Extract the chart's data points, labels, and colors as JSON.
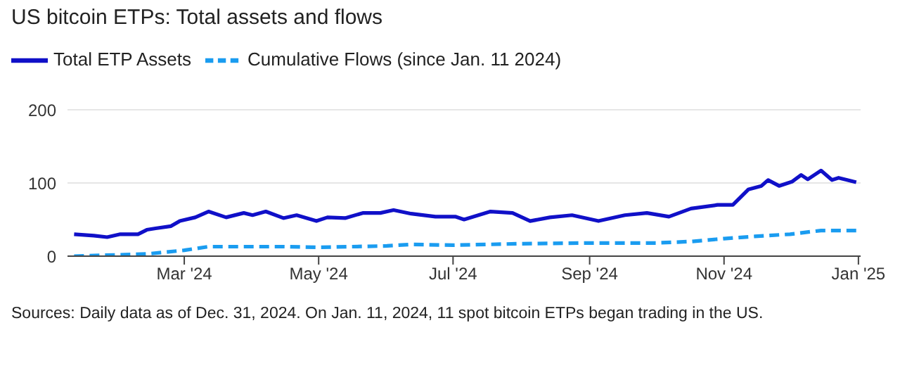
{
  "chart_data": {
    "type": "line",
    "title": "US bitcoin ETPs: Total assets and flows",
    "xlim": [
      "2024-01-08",
      "2025-01-02"
    ],
    "xticks": [
      {
        "value": "2024-03-01",
        "label": "Mar '24"
      },
      {
        "value": "2024-05-01",
        "label": "May '24"
      },
      {
        "value": "2024-07-01",
        "label": "Jul '24"
      },
      {
        "value": "2024-09-01",
        "label": "Sep '24"
      },
      {
        "value": "2024-11-01",
        "label": "Nov '24"
      },
      {
        "value": "2025-01-01",
        "label": "Jan '25"
      }
    ],
    "ylim": [
      0,
      200
    ],
    "yticks": [
      0,
      100,
      200
    ],
    "grid": "y",
    "legend": "top left",
    "marker": "none",
    "series": [
      {
        "name": "Total ETP Assets",
        "color": "#1010c8",
        "line_style": "solid",
        "x": [
          "2024-01-11",
          "2024-01-20",
          "2024-01-26",
          "2024-02-01",
          "2024-02-09",
          "2024-02-13",
          "2024-02-17",
          "2024-02-24",
          "2024-02-28",
          "2024-03-06",
          "2024-03-12",
          "2024-03-20",
          "2024-03-28",
          "2024-04-01",
          "2024-04-07",
          "2024-04-15",
          "2024-04-21",
          "2024-04-30",
          "2024-05-05",
          "2024-05-13",
          "2024-05-21",
          "2024-05-29",
          "2024-06-04",
          "2024-06-12",
          "2024-06-23",
          "2024-07-02",
          "2024-07-06",
          "2024-07-18",
          "2024-07-28",
          "2024-08-05",
          "2024-08-14",
          "2024-08-24",
          "2024-09-05",
          "2024-09-17",
          "2024-09-27",
          "2024-10-07",
          "2024-10-17",
          "2024-10-29",
          "2024-11-05",
          "2024-11-12",
          "2024-11-18",
          "2024-11-21",
          "2024-11-26",
          "2024-12-02",
          "2024-12-06",
          "2024-12-09",
          "2024-12-15",
          "2024-12-20",
          "2024-12-23",
          "2024-12-31"
        ],
        "values": [
          30,
          28,
          26,
          30,
          30,
          36,
          38,
          41,
          48,
          53,
          61,
          53,
          59,
          56,
          61,
          52,
          56,
          48,
          53,
          52,
          59,
          59,
          63,
          58,
          54,
          54,
          50,
          61,
          59,
          48,
          53,
          56,
          48,
          56,
          59,
          54,
          65,
          70,
          70,
          91,
          96,
          104,
          96,
          102,
          111,
          105,
          117,
          104,
          107,
          101
        ]
      },
      {
        "name": "Cumulative Flows (since Jan. 11 2024)",
        "color": "#1a9cf0",
        "line_style": "dashed",
        "x": [
          "2024-01-11",
          "2024-02-13",
          "2024-03-01",
          "2024-03-12",
          "2024-04-15",
          "2024-05-01",
          "2024-06-01",
          "2024-06-12",
          "2024-07-01",
          "2024-08-01",
          "2024-09-01",
          "2024-10-01",
          "2024-10-17",
          "2024-11-01",
          "2024-11-15",
          "2024-12-01",
          "2024-12-15",
          "2024-12-31"
        ],
        "values": [
          0,
          3,
          8,
          13,
          13,
          12,
          14,
          16,
          15,
          17,
          18,
          18,
          20,
          24,
          27,
          30,
          35,
          35
        ]
      }
    ],
    "annotations": [
      "Sources: Daily data as of Dec. 31, 2024. On Jan. 11, 2024, 11 spot bitcoin ETPs began trading in the US."
    ]
  }
}
